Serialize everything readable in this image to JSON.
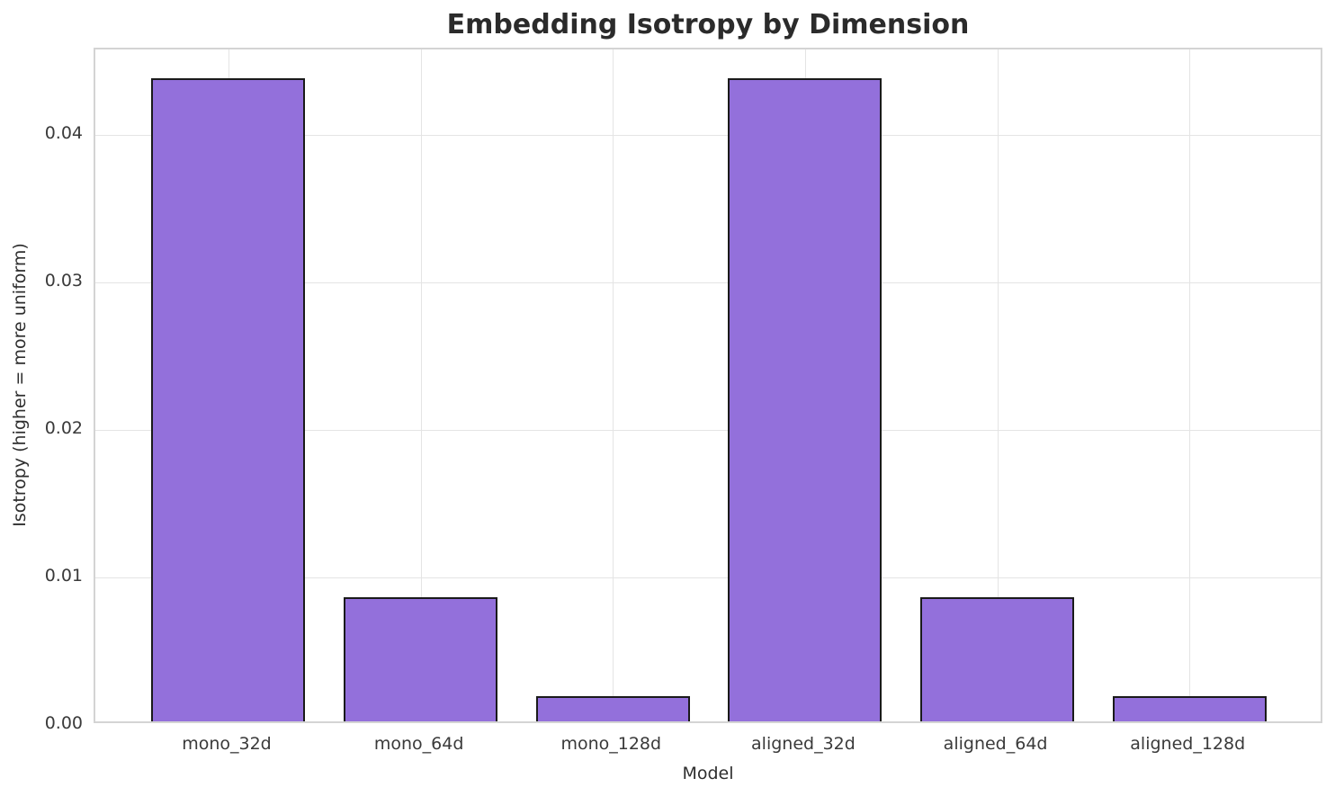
{
  "chart_data": {
    "type": "bar",
    "title": "Embedding Isotropy by Dimension",
    "xlabel": "Model",
    "ylabel": "Isotropy (higher = more uniform)",
    "categories": [
      "mono_32d",
      "mono_64d",
      "mono_128d",
      "aligned_32d",
      "aligned_64d",
      "aligned_128d"
    ],
    "values": [
      0.0436,
      0.0084,
      0.0017,
      0.0436,
      0.0084,
      0.0017
    ],
    "ylim": [
      0,
      0.0458
    ],
    "ytick_values": [
      0.0,
      0.01,
      0.02,
      0.03,
      0.04
    ],
    "ytick_labels": [
      "0.00",
      "0.01",
      "0.02",
      "0.03",
      "0.04"
    ],
    "grid": true,
    "legend": null,
    "colors": {
      "bar_fill": "#9370DB",
      "bar_edge": "#1a1a1a",
      "grid": "#e4e4e4",
      "spine": "#d4d4d4",
      "tick_text": "#3a3a3a",
      "title_text": "#2b2b2b",
      "axis_label_text": "#2e2e2e"
    }
  }
}
